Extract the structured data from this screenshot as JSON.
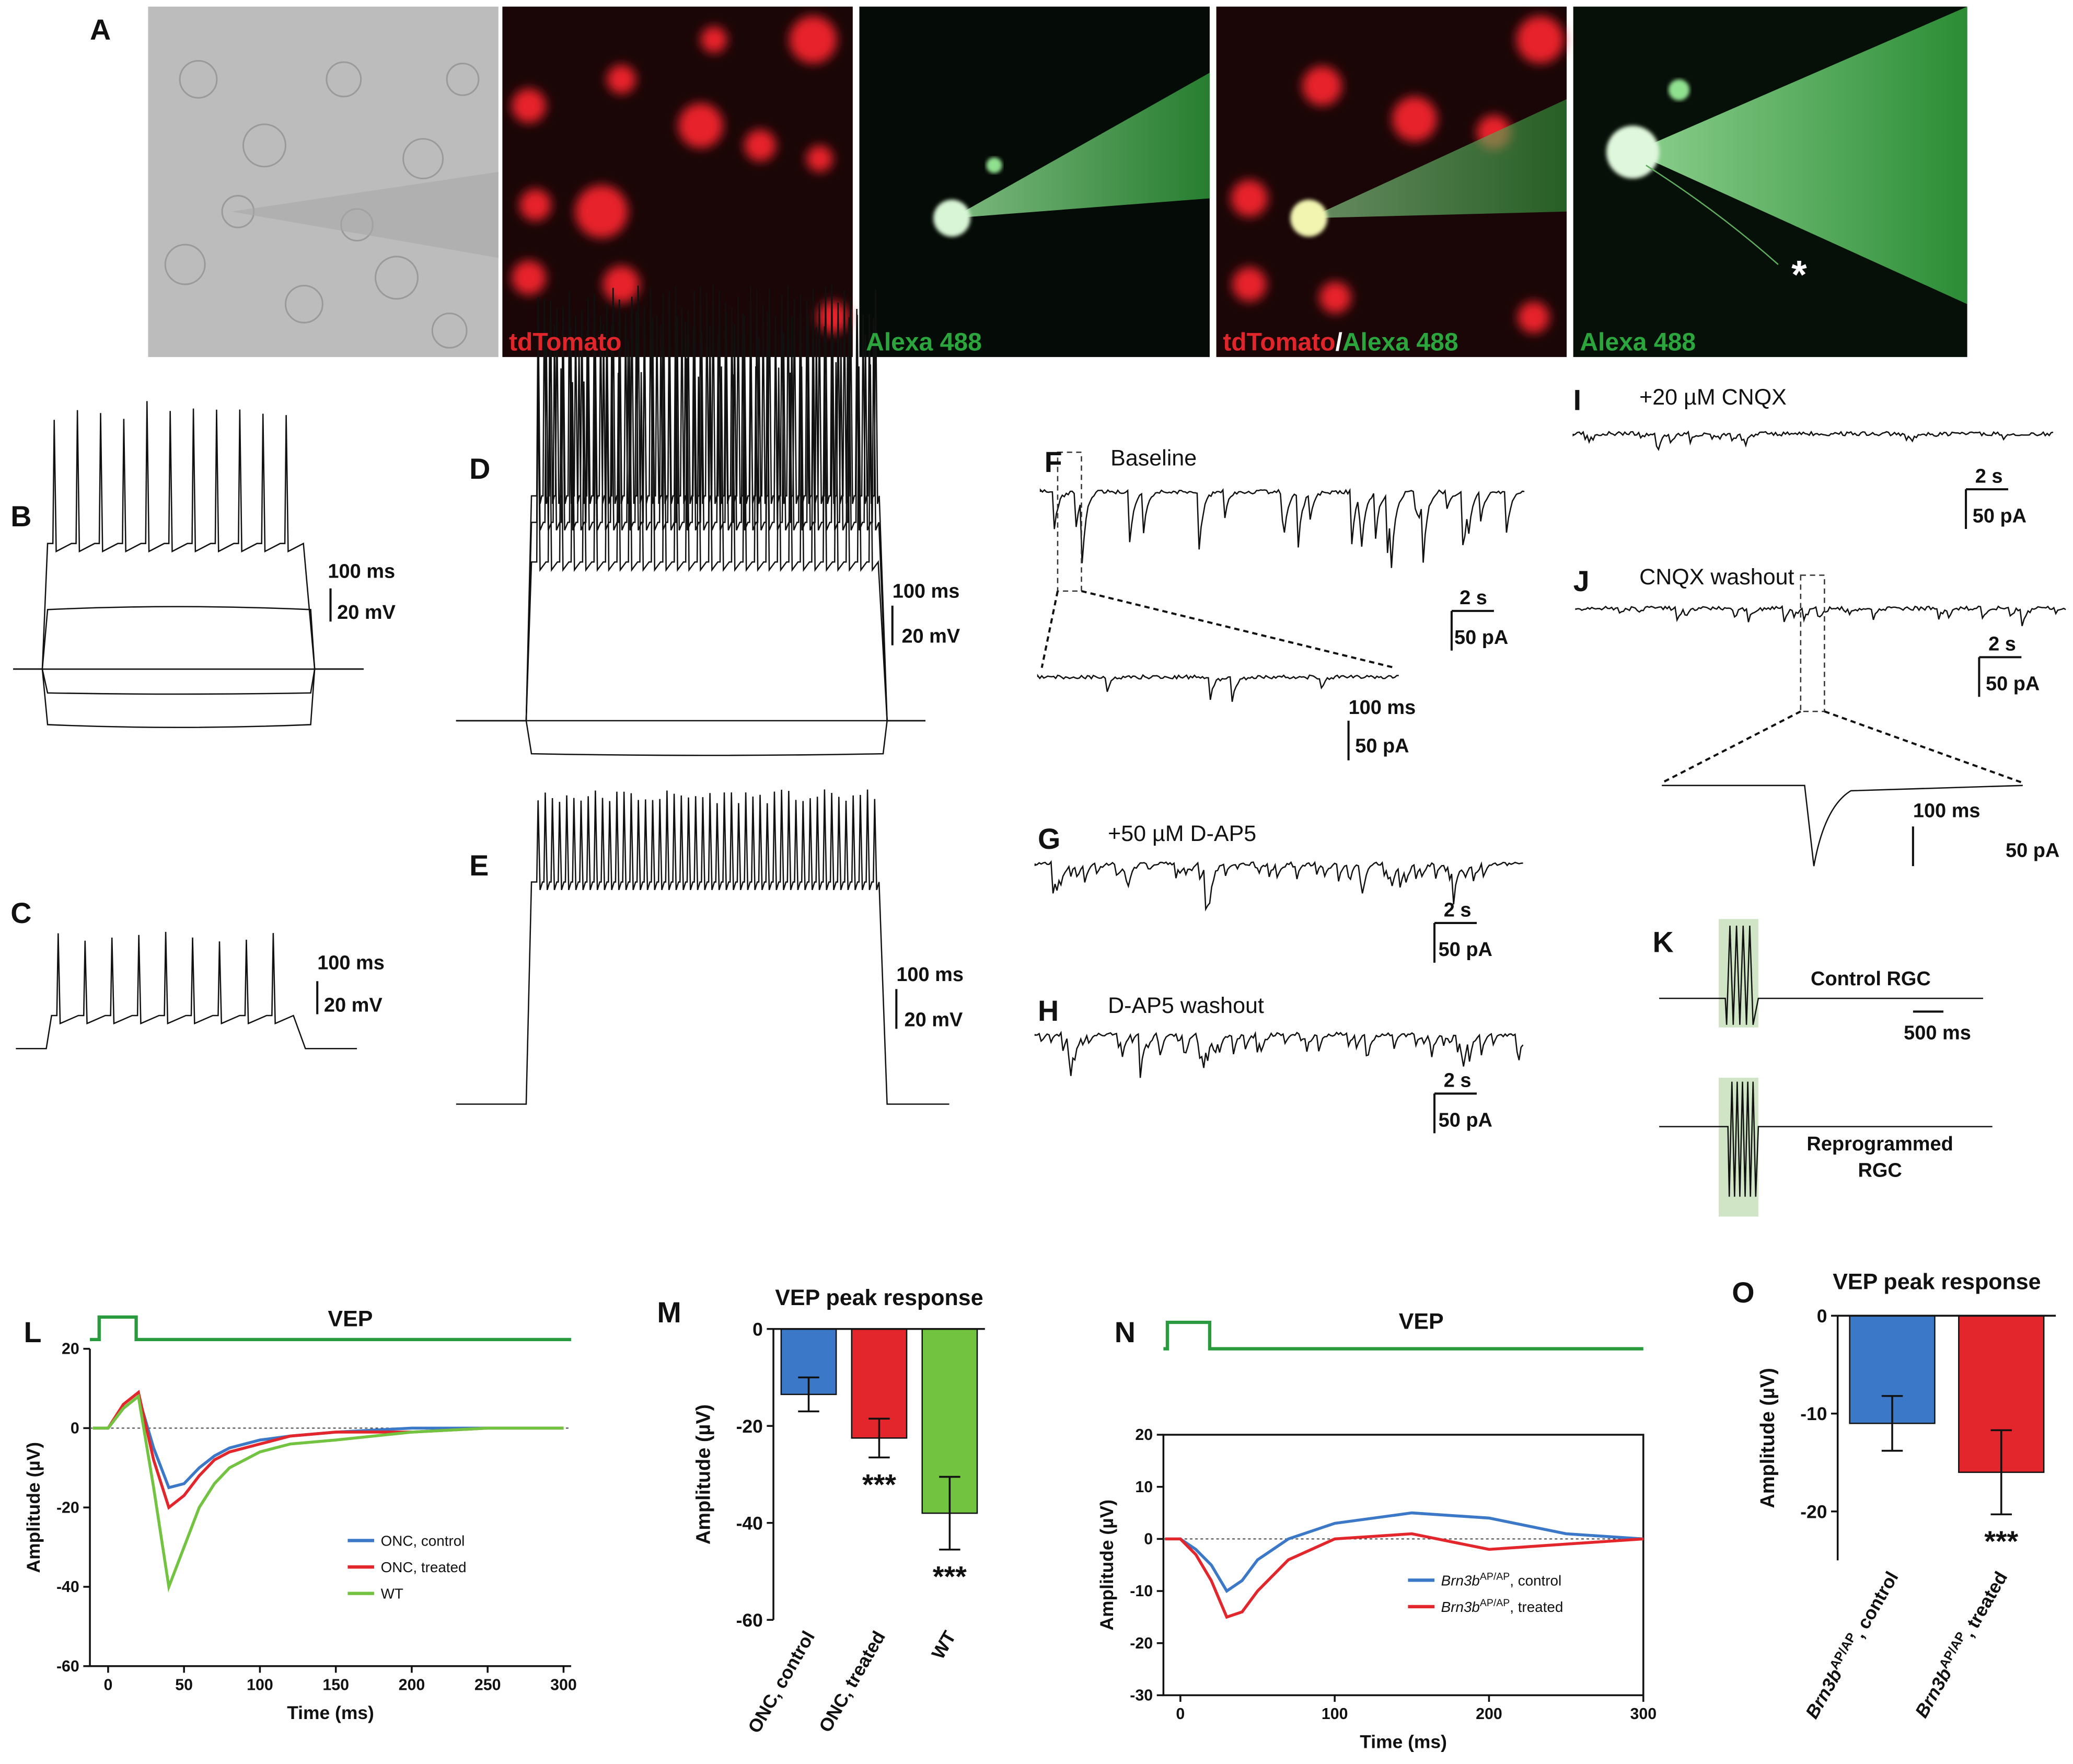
{
  "panel_a": {
    "label": "A",
    "captions": [
      [
        {
          "text": "tdTomato",
          "color": "#e0262b"
        }
      ],
      [
        {
          "text": "Alexa 488",
          "color": "#2aa63c"
        }
      ],
      [
        {
          "text": "tdTomato",
          "color": "#e0262b"
        },
        {
          "text": "/",
          "color": "#ffffff"
        },
        {
          "text": "Alexa 488",
          "color": "#2aa63c"
        }
      ],
      [
        {
          "text": "Alexa 488",
          "color": "#2aa63c"
        }
      ]
    ],
    "asterisk": "*"
  },
  "traces": {
    "B": {
      "label": "B",
      "scale": [
        "100 ms",
        "20 mV"
      ]
    },
    "C": {
      "label": "C",
      "scale": [
        "100 ms",
        "20 mV"
      ]
    },
    "D": {
      "label": "D",
      "scale": [
        "100 ms",
        "20 mV"
      ]
    },
    "E": {
      "label": "E",
      "scale": [
        "100 ms",
        "20 mV"
      ]
    },
    "F": {
      "label": "F",
      "title": "Baseline",
      "scale": [
        "2 s",
        "50 pA"
      ],
      "inset_scale": [
        "100 ms",
        "50 pA"
      ]
    },
    "G": {
      "label": "G",
      "title": "+50 µM D-AP5",
      "scale": [
        "2 s",
        "50 pA"
      ]
    },
    "H": {
      "label": "H",
      "title": "D-AP5 washout",
      "scale": [
        "2 s",
        "50 pA"
      ]
    },
    "I": {
      "label": "I",
      "title": "+20 µM CNQX",
      "scale": [
        "2 s",
        "50 pA"
      ]
    },
    "J": {
      "label": "J",
      "title": "CNQX washout",
      "scale": [
        "2 s",
        "50 pA"
      ],
      "inset_scale": [
        "100 ms",
        "50 pA"
      ]
    },
    "K": {
      "label": "K",
      "top": "Control RGC",
      "scale": [
        "500 ms"
      ],
      "bottom": [
        "Reprogrammed",
        "RGC"
      ]
    }
  },
  "chart_data": [
    {
      "type": "line",
      "label": "L",
      "title": "VEP",
      "x_label": "Time (ms)",
      "y_label": "Amplitude (µV)",
      "x": [
        -10,
        0,
        10,
        20,
        30,
        40,
        50,
        60,
        70,
        80,
        100,
        120,
        150,
        200,
        250,
        300
      ],
      "series": [
        {
          "name": "ONC, control",
          "color": "#3b78c8",
          "values": [
            0,
            0,
            5,
            8,
            -5,
            -15,
            -14,
            -10,
            -7,
            -5,
            -3,
            -2,
            -1,
            0,
            0,
            0
          ]
        },
        {
          "name": "ONC, treated",
          "color": "#e3262b",
          "values": [
            0,
            0,
            6,
            9,
            -8,
            -20,
            -17,
            -12,
            -8,
            -6,
            -4,
            -2,
            -1,
            -1,
            0,
            0
          ]
        },
        {
          "name": "WT",
          "color": "#72c340",
          "values": [
            0,
            0,
            5,
            8,
            -15,
            -40,
            -30,
            -20,
            -14,
            -10,
            -6,
            -4,
            -3,
            -1,
            0,
            0
          ]
        }
      ],
      "xlim": [
        -12,
        305
      ],
      "xticks": [
        0,
        50,
        100,
        150,
        200,
        250,
        300
      ],
      "ylim": [
        -60,
        20
      ],
      "yticks": [
        -60,
        -40,
        -20,
        0,
        20
      ],
      "legend": "lower right"
    },
    {
      "type": "bar",
      "label": "M",
      "title": "VEP peak response",
      "y_label": "Amplitude (µV)",
      "categories": [
        "ONC, control",
        "ONC, treated",
        "WT"
      ],
      "values": [
        -13.5,
        -22.5,
        -38
      ],
      "errors": [
        3.5,
        4,
        7.5
      ],
      "colors": [
        "#3b78c8",
        "#e3262b",
        "#72c340"
      ],
      "significance": [
        null,
        "***",
        "***"
      ],
      "ylim": [
        -60,
        0
      ],
      "yticks": [
        -60,
        -40,
        -20,
        0
      ]
    },
    {
      "type": "line",
      "label": "N",
      "title": "VEP",
      "x_label": "Time (ms)",
      "y_label": "Amplitude (µV)",
      "x": [
        -10,
        0,
        10,
        20,
        30,
        40,
        50,
        70,
        100,
        150,
        200,
        250,
        300
      ],
      "series": [
        {
          "name": "Brn3bAP/AP, control",
          "color": "#3b78c8",
          "values": [
            0,
            0,
            -2,
            -5,
            -10,
            -8,
            -4,
            0,
            3,
            5,
            4,
            1,
            0
          ]
        },
        {
          "name": "Brn3bAP/AP, treated",
          "color": "#e3262b",
          "values": [
            0,
            0,
            -3,
            -8,
            -15,
            -14,
            -10,
            -4,
            0,
            1,
            -2,
            -1,
            0
          ]
        }
      ],
      "xlim": [
        -11,
        300
      ],
      "xticks": [
        0,
        100,
        200,
        300
      ],
      "ylim": [
        -30,
        20
      ],
      "yticks": [
        -30,
        -20,
        -10,
        0,
        10,
        20
      ],
      "legend": "lower right"
    },
    {
      "type": "bar",
      "label": "O",
      "title": "VEP peak response",
      "y_label": "Amplitude (µV)",
      "categories": [
        "Brn3bAP/AP, control",
        "Brn3bAP/AP, treated"
      ],
      "values": [
        -11,
        -16
      ],
      "errors": [
        2.8,
        4.3
      ],
      "colors": [
        "#3b78c8",
        "#e3262b"
      ],
      "significance": [
        null,
        "***"
      ],
      "ylim": [
        -25,
        0
      ],
      "yticks": [
        -20,
        -10,
        0
      ]
    }
  ]
}
